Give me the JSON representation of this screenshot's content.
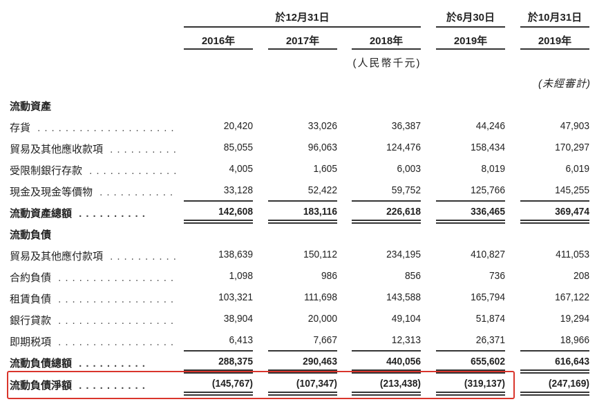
{
  "header": {
    "group1": "於12月31日",
    "group2": "於6月30日",
    "group3": "於10月31日",
    "years": [
      "2016年",
      "2017年",
      "2018年",
      "2019年",
      "2019年"
    ],
    "unit": "(人民幣千元)",
    "unaudited": "(未經審計)"
  },
  "sections": [
    {
      "title": "流動資產",
      "rows": [
        {
          "label": "存貨",
          "values": [
            "20,420",
            "33,026",
            "36,387",
            "44,246",
            "47,903"
          ]
        },
        {
          "label": "貿易及其他應收款項",
          "values": [
            "85,055",
            "96,063",
            "124,476",
            "158,434",
            "170,297"
          ]
        },
        {
          "label": "受限制銀行存款",
          "values": [
            "4,005",
            "1,605",
            "6,003",
            "8,019",
            "6,019"
          ]
        },
        {
          "label": "現金及現金等價物",
          "values": [
            "33,128",
            "52,422",
            "59,752",
            "125,766",
            "145,255"
          ]
        }
      ],
      "total": {
        "label": "流動資產總額",
        "values": [
          "142,608",
          "183,116",
          "226,618",
          "336,465",
          "369,474"
        ]
      }
    },
    {
      "title": "流動負債",
      "rows": [
        {
          "label": "貿易及其他應付款項",
          "values": [
            "138,639",
            "150,112",
            "234,195",
            "410,827",
            "411,053"
          ]
        },
        {
          "label": "合約負債",
          "values": [
            "1,098",
            "986",
            "856",
            "736",
            "208"
          ]
        },
        {
          "label": "租賃負債",
          "values": [
            "103,321",
            "111,698",
            "143,588",
            "165,794",
            "167,122"
          ]
        },
        {
          "label": "銀行貸款",
          "values": [
            "38,904",
            "20,000",
            "49,104",
            "51,874",
            "19,294"
          ]
        },
        {
          "label": "即期税項",
          "values": [
            "6,413",
            "7,667",
            "12,313",
            "26,371",
            "18,966"
          ]
        }
      ],
      "total": {
        "label": "流動負債總額",
        "values": [
          "288,375",
          "290,463",
          "440,056",
          "655,602",
          "616,643"
        ]
      }
    }
  ],
  "net": {
    "label": "流動負債淨額",
    "values": [
      "(145,767)",
      "(107,347)",
      "(213,438)",
      "(319,137)",
      "(247,169)"
    ]
  },
  "highlight_color": "#d9342b"
}
